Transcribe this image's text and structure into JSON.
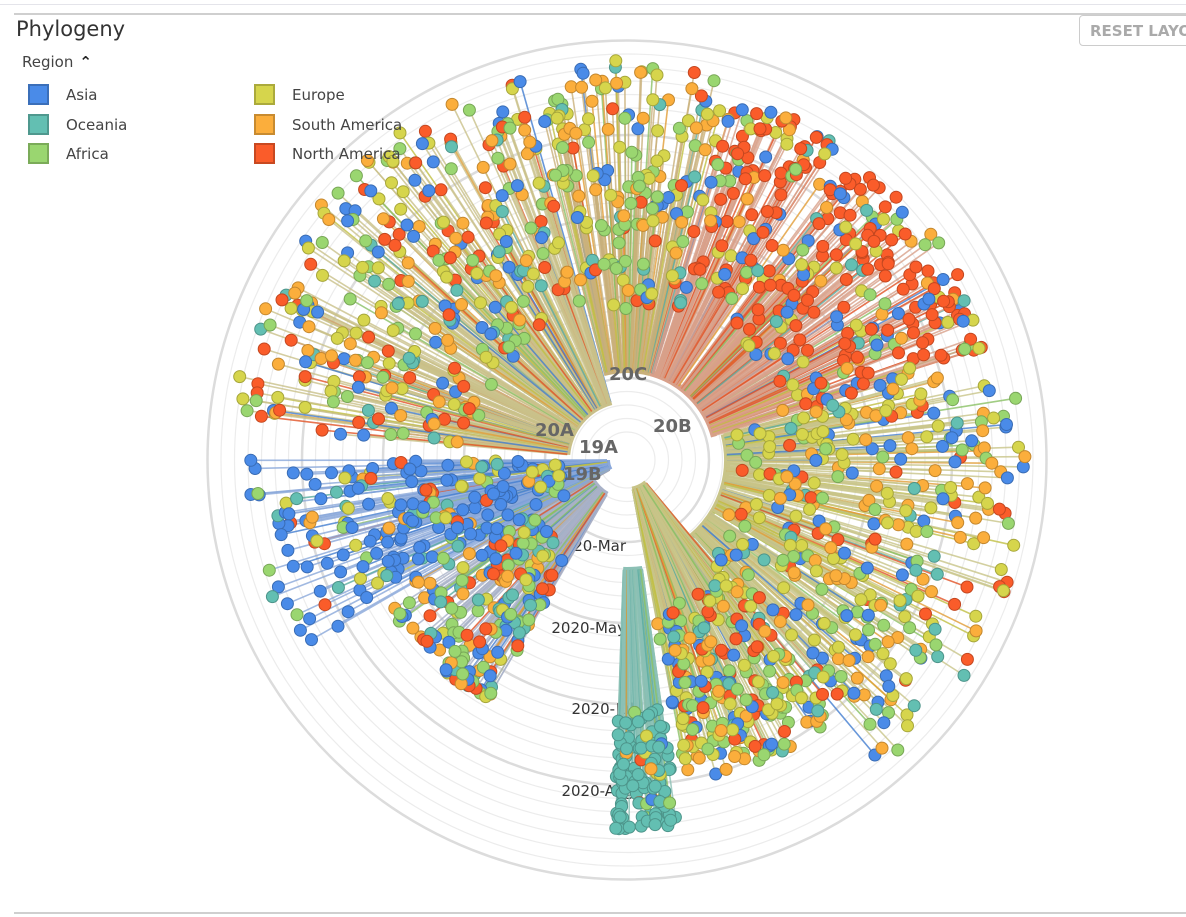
{
  "panel": {
    "title": "Phylogeny",
    "reset_label": "RESET LAYOUT"
  },
  "legend": {
    "title": "Region",
    "items": [
      {
        "label": "Asia",
        "color": "#4a8be8"
      },
      {
        "label": "Oceania",
        "color": "#63bfb2"
      },
      {
        "label": "Africa",
        "color": "#9ad670"
      },
      {
        "label": "Europe",
        "color": "#d6d54c"
      },
      {
        "label": "South America",
        "color": "#fbae3c"
      },
      {
        "label": "North America",
        "color": "#fa5c2a"
      }
    ]
  },
  "chart_data": {
    "type": "radial-phylogeny",
    "color_by": "Region",
    "clade_labels": [
      "20C",
      "20B",
      "20A",
      "19A",
      "19B"
    ],
    "time_ticks": [
      "2020-Mar",
      "2020-May",
      "2020-Jul",
      "2020-Aug"
    ],
    "regions": [
      "Asia",
      "Oceania",
      "Africa",
      "Europe",
      "South America",
      "North America"
    ]
  }
}
